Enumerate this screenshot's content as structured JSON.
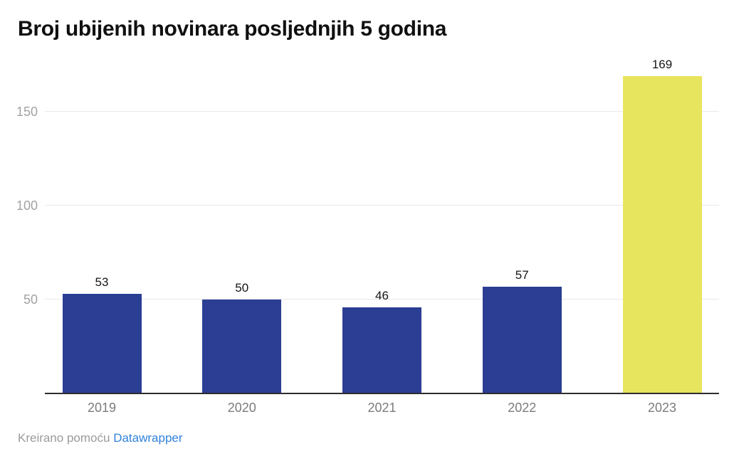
{
  "chart_data": {
    "type": "bar",
    "title": "Broj ubijenih novinara posljednjih 5 godina",
    "categories": [
      "2019",
      "2020",
      "2021",
      "2022",
      "2023"
    ],
    "values": [
      53,
      50,
      46,
      57,
      169
    ],
    "value_labels": [
      "53",
      "50",
      "46",
      "57",
      "169"
    ],
    "yticks": [
      50,
      100,
      150
    ],
    "ylim": [
      0,
      172
    ],
    "grid": "horizontal",
    "legend_position": "none",
    "xlabel": "",
    "ylabel": "",
    "bar_colors": [
      "#2b3e93",
      "#2b3e93",
      "#2b3e93",
      "#2b3e93",
      "#e7e45e"
    ],
    "highlight_category": "2023"
  },
  "footer": {
    "prefix": "Kreirano pomoću ",
    "link_label": "Datawrapper"
  },
  "colors": {
    "bar_default": "#2b3e93",
    "bar_highlight": "#e7e45e",
    "link": "#3183dd",
    "axis_line": "#2d2d2d",
    "gridline": "#e8e8e8",
    "tick_label": "#a2a2a2",
    "category_label": "#7b7b7b",
    "title": "#101010",
    "background": "#ffffff"
  }
}
